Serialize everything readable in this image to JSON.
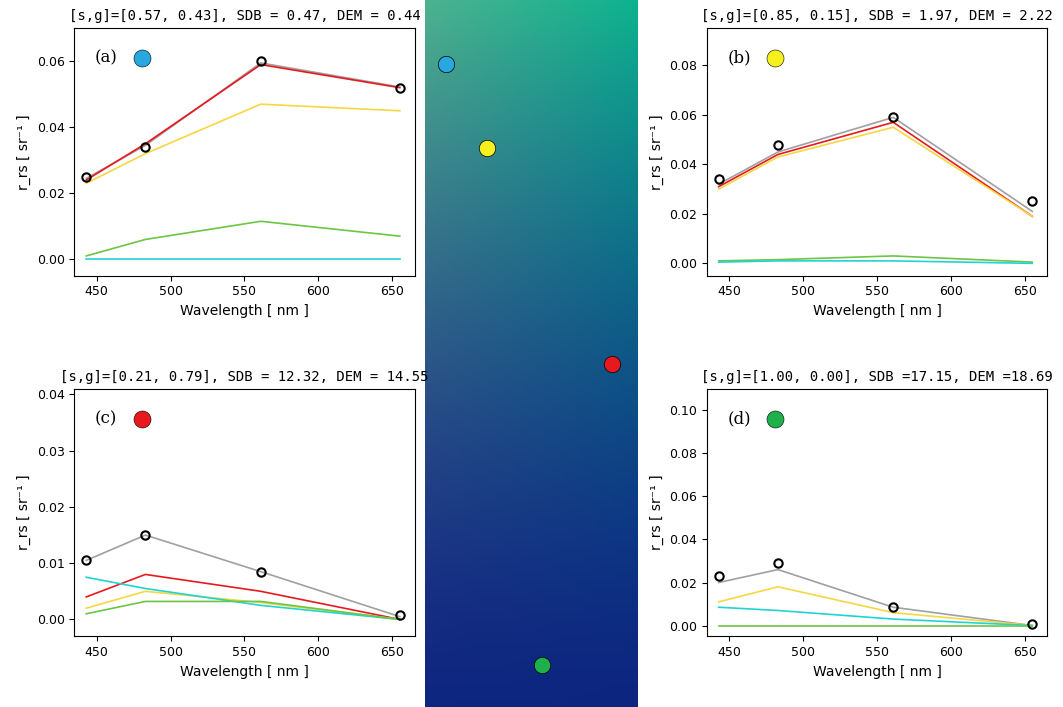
{
  "chart_data": [
    {
      "type": "line",
      "title": "[s,g]=[0.57, 0.43], SDB = 0.47, DEM = 0.44",
      "panel_label": "(a)",
      "color": "#29a8e0",
      "x_label": "Wavelength [ nm ]",
      "y_label": "r_rs [ sr⁻¹ ]",
      "x": [
        443,
        483,
        561,
        655
      ],
      "xlim": [
        435,
        665
      ],
      "xticks": [
        450,
        500,
        550,
        600,
        650
      ],
      "ylim": [
        -0.005,
        0.07
      ],
      "yticks": [
        {
          "value": 0,
          "label": "0.00"
        },
        {
          "value": 0.02,
          "label": "0.02"
        },
        {
          "value": 0.04,
          "label": "0.04"
        },
        {
          "value": 0.06,
          "label": "0.06"
        }
      ],
      "series": [
        {
          "color": "#a0a0a0",
          "marker": "none",
          "line_style": "solid",
          "values": [
            0.0245,
            0.0345,
            0.0595,
            0.0522
          ]
        },
        {
          "color": "#e8191e",
          "marker": "none",
          "line_style": "solid",
          "values": [
            0.024,
            0.035,
            0.059,
            0.052
          ]
        },
        {
          "color": "#f5d742",
          "marker": "none",
          "line_style": "solid",
          "values": [
            0.023,
            0.032,
            0.047,
            0.045
          ]
        },
        {
          "color": "#6cc644",
          "marker": "none",
          "line_style": "solid",
          "values": [
            0.001,
            0.006,
            0.0115,
            0.007
          ]
        },
        {
          "color": "#22d3d3",
          "marker": "none",
          "line_style": "solid",
          "values": [
            0.0,
            0.0,
            0.0,
            0.0
          ]
        },
        {
          "color": "#000000",
          "marker": "circle",
          "line_style": "none",
          "values": [
            0.025,
            0.034,
            0.06,
            0.052
          ]
        }
      ]
    },
    {
      "type": "line",
      "title": "[s,g]=[0.85, 0.15], SDB = 1.97, DEM = 2.22",
      "panel_label": "(b)",
      "color": "#f5f01e",
      "x_label": "Wavelength [ nm ]",
      "y_label": "r_rs [ sr⁻¹ ]",
      "x": [
        443,
        483,
        561,
        655
      ],
      "xlim": [
        435,
        665
      ],
      "xticks": [
        450,
        500,
        550,
        600,
        650
      ],
      "ylim": [
        -0.005,
        0.095
      ],
      "yticks": [
        {
          "value": 0,
          "label": "0.00"
        },
        {
          "value": 0.02,
          "label": "0.02"
        },
        {
          "value": 0.04,
          "label": "0.04"
        },
        {
          "value": 0.06,
          "label": "0.06"
        },
        {
          "value": 0.08,
          "label": "0.08"
        }
      ],
      "series": [
        {
          "color": "#a0a0a0",
          "marker": "none",
          "line_style": "solid",
          "values": [
            0.032,
            0.045,
            0.059,
            0.021
          ]
        },
        {
          "color": "#e8191e",
          "marker": "none",
          "line_style": "solid",
          "values": [
            0.031,
            0.044,
            0.057,
            0.019
          ]
        },
        {
          "color": "#f5d742",
          "marker": "none",
          "line_style": "solid",
          "values": [
            0.03,
            0.043,
            0.055,
            0.019
          ]
        },
        {
          "color": "#6cc644",
          "marker": "none",
          "line_style": "solid",
          "values": [
            0.001,
            0.0015,
            0.003,
            0.0005
          ]
        },
        {
          "color": "#22d3d3",
          "marker": "none",
          "line_style": "solid",
          "values": [
            0.0005,
            0.001,
            0.001,
            0.0
          ]
        },
        {
          "color": "#000000",
          "marker": "circle",
          "line_style": "none",
          "values": [
            0.034,
            0.048,
            0.059,
            0.025
          ]
        }
      ]
    },
    {
      "type": "line",
      "title": "[s,g]=[0.21, 0.79], SDB = 12.32, DEM = 14.55",
      "panel_label": "(c)",
      "color": "#e8191e",
      "x_label": "Wavelength [ nm ]",
      "y_label": "r_rs [ sr⁻¹ ]",
      "x": [
        443,
        483,
        561,
        655
      ],
      "xlim": [
        435,
        665
      ],
      "xticks": [
        450,
        500,
        550,
        600,
        650
      ],
      "ylim": [
        -0.003,
        0.041
      ],
      "yticks": [
        {
          "value": 0,
          "label": "0.00"
        },
        {
          "value": 0.01,
          "label": "0.01"
        },
        {
          "value": 0.02,
          "label": "0.02"
        },
        {
          "value": 0.03,
          "label": "0.03"
        },
        {
          "value": 0.04,
          "label": "0.04"
        }
      ],
      "series": [
        {
          "color": "#a0a0a0",
          "marker": "none",
          "line_style": "solid",
          "values": [
            0.0105,
            0.015,
            0.0085,
            0.0005
          ]
        },
        {
          "color": "#e8191e",
          "marker": "none",
          "line_style": "solid",
          "values": [
            0.004,
            0.008,
            0.005,
            0.0
          ]
        },
        {
          "color": "#f5d742",
          "marker": "none",
          "line_style": "solid",
          "values": [
            0.002,
            0.005,
            0.003,
            0.0
          ]
        },
        {
          "color": "#22d3d3",
          "marker": "none",
          "line_style": "solid",
          "values": [
            0.0075,
            0.0055,
            0.0025,
            0.0
          ]
        },
        {
          "color": "#6cc644",
          "marker": "none",
          "line_style": "solid",
          "values": [
            0.001,
            0.0032,
            0.0032,
            0.0
          ]
        },
        {
          "color": "#000000",
          "marker": "circle",
          "line_style": "none",
          "values": [
            0.0105,
            0.015,
            0.0085,
            0.0008
          ]
        }
      ]
    },
    {
      "type": "line",
      "title": "[s,g]=[1.00, 0.00], SDB =17.15, DEM =18.69",
      "panel_label": "(d)",
      "color": "#1db04b",
      "x_label": "Wavelength [ nm ]",
      "y_label": "r_rs [ sr⁻¹ ]",
      "x": [
        443,
        483,
        561,
        655
      ],
      "xlim": [
        435,
        665
      ],
      "xticks": [
        450,
        500,
        550,
        600,
        650
      ],
      "ylim": [
        -0.005,
        0.11
      ],
      "yticks": [
        {
          "value": 0,
          "label": "0.00"
        },
        {
          "value": 0.02,
          "label": "0.02"
        },
        {
          "value": 0.04,
          "label": "0.04"
        },
        {
          "value": 0.06,
          "label": "0.06"
        },
        {
          "value": 0.08,
          "label": "0.08"
        },
        {
          "value": 0.1,
          "label": "0.10"
        }
      ],
      "series": [
        {
          "color": "#a0a0a0",
          "marker": "none",
          "line_style": "solid",
          "values": [
            0.02,
            0.026,
            0.0085,
            0.0
          ]
        },
        {
          "color": "#f5d742",
          "marker": "none",
          "line_style": "solid",
          "values": [
            0.011,
            0.018,
            0.006,
            0.0
          ]
        },
        {
          "color": "#22d3d3",
          "marker": "none",
          "line_style": "solid",
          "values": [
            0.0085,
            0.007,
            0.003,
            0.0
          ]
        },
        {
          "color": "#6cc644",
          "marker": "none",
          "line_style": "solid",
          "values": [
            0.0,
            0.0,
            0.0,
            0.0
          ]
        },
        {
          "color": "#000000",
          "marker": "circle",
          "line_style": "none",
          "values": [
            0.023,
            0.029,
            0.0085,
            0.0005
          ]
        }
      ]
    }
  ]
}
